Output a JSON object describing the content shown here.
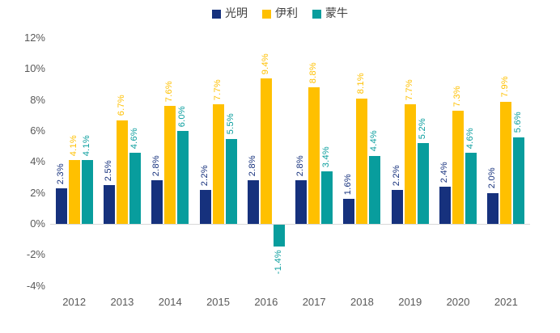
{
  "chart_data": {
    "type": "bar",
    "title": "",
    "xlabel": "",
    "ylabel": "",
    "categories": [
      "2012",
      "2013",
      "2014",
      "2015",
      "2016",
      "2017",
      "2018",
      "2019",
      "2020",
      "2021"
    ],
    "series": [
      {
        "id": "guangming",
        "name": "光明",
        "color": "#16317d",
        "values": [
          2.3,
          2.5,
          2.8,
          2.2,
          2.8,
          2.8,
          1.6,
          2.2,
          2.4,
          2.0
        ]
      },
      {
        "id": "yili",
        "name": "伊利",
        "color": "#ffc000",
        "values": [
          4.1,
          6.7,
          7.6,
          7.7,
          9.4,
          8.8,
          8.1,
          7.7,
          7.3,
          7.9
        ]
      },
      {
        "id": "mengniu",
        "name": "蒙牛",
        "color": "#089d9d",
        "values": [
          4.1,
          4.6,
          6.0,
          5.5,
          -1.4,
          3.4,
          4.4,
          5.2,
          4.6,
          5.6
        ]
      }
    ],
    "value_label_format": "0.0%",
    "ylim": [
      -4,
      12
    ],
    "ytick_step": 2,
    "ytick_labels": [
      "12%",
      "10%",
      "8%",
      "6%",
      "4%",
      "2%",
      "0%",
      "-2%",
      "-4%"
    ],
    "grid": false,
    "legend_position": "top-center",
    "axis_color": "#d9d9d9",
    "tick_text_color": "#595959"
  }
}
